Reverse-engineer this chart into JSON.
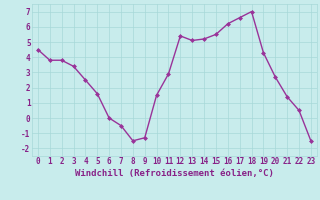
{
  "x": [
    0,
    1,
    2,
    3,
    4,
    5,
    6,
    7,
    8,
    9,
    10,
    11,
    12,
    13,
    14,
    15,
    16,
    17,
    18,
    19,
    20,
    21,
    22,
    23
  ],
  "y": [
    4.5,
    3.8,
    3.8,
    3.4,
    2.5,
    1.6,
    0.0,
    -0.5,
    -1.5,
    -1.3,
    1.5,
    2.9,
    5.4,
    5.1,
    5.2,
    5.5,
    6.2,
    6.6,
    7.0,
    4.3,
    2.7,
    1.4,
    0.5,
    -1.5
  ],
  "line_color": "#993399",
  "marker": "D",
  "markersize": 2,
  "linewidth": 1.0,
  "xlabel": "Windchill (Refroidissement éolien,°C)",
  "xlim": [
    -0.5,
    23.5
  ],
  "ylim": [
    -2.5,
    7.5
  ],
  "yticks": [
    -2,
    -1,
    0,
    1,
    2,
    3,
    4,
    5,
    6,
    7
  ],
  "xticks": [
    0,
    1,
    2,
    3,
    4,
    5,
    6,
    7,
    8,
    9,
    10,
    11,
    12,
    13,
    14,
    15,
    16,
    17,
    18,
    19,
    20,
    21,
    22,
    23
  ],
  "xtick_labels": [
    "0",
    "1",
    "2",
    "3",
    "4",
    "5",
    "6",
    "7",
    "8",
    "9",
    "10",
    "11",
    "12",
    "13",
    "14",
    "15",
    "16",
    "17",
    "18",
    "19",
    "20",
    "21",
    "22",
    "23"
  ],
  "bg_color": "#c8ecec",
  "grid_color": "#a8d8d8",
  "line_label_color": "#882288",
  "xlabel_fontsize": 6.5,
  "tick_fontsize": 5.5
}
